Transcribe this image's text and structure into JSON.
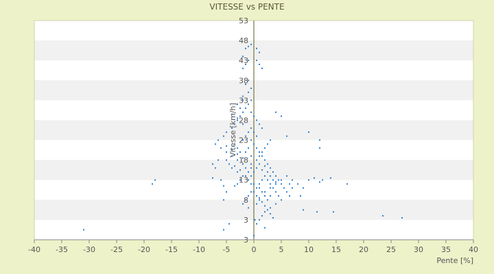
{
  "chart_data": {
    "type": "scatter",
    "title": "VITESSE vs PENTE",
    "xlabel": "Pente [%]",
    "ylabel": "Vitesse [km/h]",
    "xlim": [
      -40,
      40
    ],
    "ylim": [
      -2,
      53
    ],
    "x_ticks": [
      "-40",
      "-35",
      "-30",
      "-25",
      "-20",
      "-15",
      "-10",
      "-5",
      "0",
      "5",
      "10",
      "15",
      "20",
      "25",
      "30",
      "35",
      "40"
    ],
    "y_ticks": [
      "53",
      "48",
      "43",
      "38",
      "33",
      "28",
      "23",
      "18",
      "13",
      "8",
      "3",
      "3"
    ],
    "grid": true,
    "point_color": "#2f7fcf",
    "series": [
      {
        "values_xy": [
          [
            -31,
            0.5
          ],
          [
            -18.5,
            12
          ],
          [
            -18,
            13
          ],
          [
            -5.5,
            0.5
          ],
          [
            -4.5,
            2
          ],
          [
            -5.5,
            8
          ],
          [
            -5,
            10
          ],
          [
            -5.5,
            11.5
          ],
          [
            -6,
            13
          ],
          [
            -7.5,
            13.5
          ],
          [
            -7,
            16
          ],
          [
            -7.5,
            17
          ],
          [
            -6.5,
            18
          ],
          [
            -5,
            18
          ],
          [
            -4.5,
            17
          ],
          [
            -4,
            16
          ],
          [
            -3,
            15
          ],
          [
            -2,
            14
          ],
          [
            -1,
            13
          ],
          [
            -0.5,
            12
          ],
          [
            -3.5,
            11.5
          ],
          [
            -3,
            12
          ],
          [
            -2.5,
            13
          ],
          [
            -1.5,
            14
          ],
          [
            -1,
            15
          ],
          [
            -0.5,
            16
          ],
          [
            -2,
            17
          ],
          [
            -3,
            18
          ],
          [
            -4,
            19
          ],
          [
            -5,
            20
          ],
          [
            -6,
            21
          ],
          [
            -7,
            22
          ],
          [
            -6.5,
            23
          ],
          [
            -5.5,
            24
          ],
          [
            -5,
            25
          ],
          [
            -4,
            26
          ],
          [
            -3.5,
            27
          ],
          [
            -3,
            28
          ],
          [
            -2.5,
            29
          ],
          [
            -2,
            30
          ],
          [
            -1.5,
            31
          ],
          [
            -1,
            32
          ],
          [
            -0.5,
            33
          ],
          [
            -2,
            34
          ],
          [
            -1,
            35
          ],
          [
            -0.5,
            36
          ],
          [
            -1.5,
            37
          ],
          [
            -1,
            38
          ],
          [
            -2,
            41
          ],
          [
            -1.5,
            42
          ],
          [
            -1,
            43
          ],
          [
            -2,
            44
          ],
          [
            -1.5,
            46
          ],
          [
            -1,
            46.5
          ],
          [
            -0.5,
            47
          ],
          [
            0.5,
            46
          ],
          [
            1,
            45
          ],
          [
            0.5,
            43
          ],
          [
            1,
            42
          ],
          [
            1.5,
            41
          ],
          [
            -0.5,
            30
          ],
          [
            0,
            29
          ],
          [
            0.5,
            28
          ],
          [
            1,
            27
          ],
          [
            1.5,
            26
          ],
          [
            0,
            25
          ],
          [
            0.5,
            24
          ],
          [
            -0.5,
            23
          ],
          [
            0,
            22
          ],
          [
            0.5,
            21
          ],
          [
            1,
            20
          ],
          [
            1.5,
            19
          ],
          [
            2,
            18
          ],
          [
            2.5,
            17
          ],
          [
            3,
            16
          ],
          [
            3.5,
            15
          ],
          [
            4,
            14
          ],
          [
            4.5,
            13
          ],
          [
            5,
            12
          ],
          [
            5.5,
            11
          ],
          [
            6,
            10
          ],
          [
            6.5,
            9
          ],
          [
            5,
            8
          ],
          [
            4,
            7
          ],
          [
            3,
            6
          ],
          [
            2,
            5
          ],
          [
            1.5,
            4
          ],
          [
            1,
            3
          ],
          [
            0.5,
            2
          ],
          [
            2,
            1
          ],
          [
            0.5,
            11
          ],
          [
            1,
            12
          ],
          [
            1.5,
            13
          ],
          [
            2,
            14
          ],
          [
            2.5,
            13
          ],
          [
            3,
            12
          ],
          [
            3.5,
            11
          ],
          [
            4,
            10
          ],
          [
            4.5,
            9
          ],
          [
            3,
            9
          ],
          [
            2.5,
            8
          ],
          [
            2,
            9
          ],
          [
            1.5,
            10
          ],
          [
            1,
            11
          ],
          [
            0,
            12
          ],
          [
            -0.5,
            10
          ],
          [
            -1,
            9
          ],
          [
            -1.5,
            8
          ],
          [
            -2,
            7
          ],
          [
            -1,
            6
          ],
          [
            0.5,
            7
          ],
          [
            1,
            8
          ],
          [
            2,
            10
          ],
          [
            3,
            11
          ],
          [
            4,
            12
          ],
          [
            5,
            13
          ],
          [
            6,
            14
          ],
          [
            7,
            13
          ],
          [
            8,
            12
          ],
          [
            9,
            11
          ],
          [
            8.5,
            9
          ],
          [
            9,
            5.5
          ],
          [
            10,
            13
          ],
          [
            11,
            13.5
          ],
          [
            12,
            12.5
          ],
          [
            12.5,
            13
          ],
          [
            14,
            13.5
          ],
          [
            11.5,
            5
          ],
          [
            14.5,
            5
          ],
          [
            17,
            12
          ],
          [
            12,
            21
          ],
          [
            12,
            23
          ],
          [
            10,
            25
          ],
          [
            6,
            24
          ],
          [
            5,
            29
          ],
          [
            4,
            30
          ],
          [
            23.5,
            4
          ],
          [
            27,
            3.5
          ],
          [
            6.5,
            12
          ],
          [
            7,
            11
          ],
          [
            -2.5,
            20
          ],
          [
            -3,
            21
          ],
          [
            -3.5,
            22
          ],
          [
            -2,
            23
          ],
          [
            -1.5,
            24
          ],
          [
            -1,
            25
          ],
          [
            -0.5,
            26
          ],
          [
            -2,
            27
          ],
          [
            -3,
            28.5
          ],
          [
            -4,
            29.5
          ],
          [
            -2.5,
            31
          ],
          [
            -3,
            32
          ],
          [
            -2,
            33
          ],
          [
            -1.5,
            20
          ],
          [
            -1,
            21
          ],
          [
            -0.5,
            19
          ],
          [
            -2,
            18.5
          ],
          [
            -3,
            19.5
          ],
          [
            -4,
            20.5
          ],
          [
            -5,
            21.5
          ],
          [
            -3.5,
            16.5
          ],
          [
            -2.5,
            15.5
          ],
          [
            -1.5,
            16
          ],
          [
            -0.5,
            17
          ],
          [
            0.5,
            18
          ],
          [
            1,
            19
          ],
          [
            1.5,
            20
          ],
          [
            2,
            21
          ],
          [
            2.5,
            22
          ],
          [
            3,
            23
          ],
          [
            1,
            17
          ],
          [
            0.5,
            16
          ],
          [
            0,
            15
          ],
          [
            -0.5,
            14
          ],
          [
            1.5,
            15.5
          ],
          [
            2,
            16.5
          ],
          [
            2.5,
            15
          ],
          [
            3,
            14
          ],
          [
            3.5,
            13
          ],
          [
            4,
            12.5
          ],
          [
            0,
            10
          ],
          [
            0.5,
            9
          ],
          [
            1,
            8.5
          ],
          [
            1.5,
            7.5
          ],
          [
            2,
            6.5
          ],
          [
            2.5,
            5.5
          ],
          [
            3,
            4.5
          ],
          [
            3.5,
            3.5
          ],
          [
            0,
            -1
          ],
          [
            0.2,
            3
          ]
        ]
      }
    ]
  }
}
